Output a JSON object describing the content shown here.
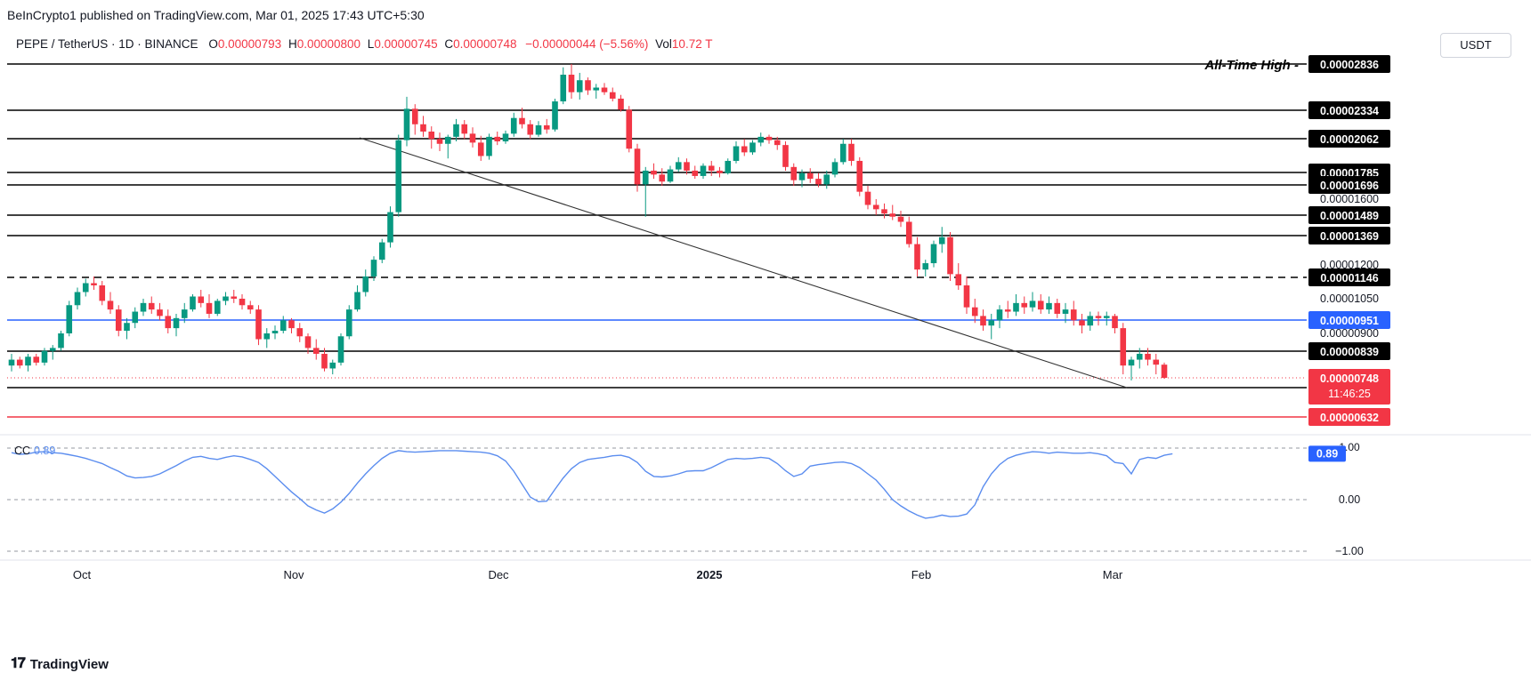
{
  "publisher": "BeInCrypto1 published on TradingView.com, Mar 01, 2025 17:43 UTC+5:30",
  "header": {
    "symbol": "PEPE / TetherUS · 1D · BINANCE",
    "o_label": "O",
    "o_value": "0.00000793",
    "h_label": "H",
    "h_value": "0.00000800",
    "l_label": "L",
    "l_value": "0.00000745",
    "c_label": "C",
    "c_value": "0.00000748",
    "change": "−0.00000044 (−5.56%)",
    "vol_label": "Vol",
    "vol_value": "10.72 T"
  },
  "currency_button": "USDT",
  "footer_brand": "TradingView",
  "ath_label": "All-Time High",
  "colors": {
    "up": "#089981",
    "down": "#f23645",
    "blue": "#2962ff",
    "line": "#000000",
    "cc": "#5b8def"
  },
  "chart_data": {
    "type": "candlestick",
    "interval": "1D",
    "x_labels": [
      "Oct",
      "Nov",
      "Dec",
      "2025",
      "Feb",
      "Mar"
    ],
    "levels": [
      {
        "value": "0.00002836",
        "style": "solid",
        "color": "#000000"
      },
      {
        "value": "0.00002334",
        "style": "solid",
        "color": "#000000"
      },
      {
        "value": "0.00002062",
        "style": "solid",
        "color": "#000000"
      },
      {
        "value": "0.00001785",
        "style": "solid",
        "color": "#000000"
      },
      {
        "value": "0.00001696",
        "style": "solid",
        "color": "#000000"
      },
      {
        "value": "0.00001489",
        "style": "solid",
        "color": "#000000"
      },
      {
        "value": "0.00001369",
        "style": "solid",
        "color": "#000000"
      },
      {
        "value": "0.00001146",
        "style": "dashed",
        "color": "#000000"
      },
      {
        "value": "0.00000951",
        "style": "solid",
        "color": "#2962ff"
      },
      {
        "value": "0.00000839",
        "style": "solid",
        "color": "#000000"
      },
      {
        "value": "0.00000718",
        "style": "solid",
        "color": "#000000"
      },
      {
        "value": "0.00000632",
        "style": "solid",
        "color": "#f23645"
      }
    ],
    "axis_ticks": [
      "0.00001600",
      "0.00001200",
      "0.00001050",
      "0.00000900"
    ],
    "last_price": "0.00000748",
    "countdown": "11:46:25",
    "candles": [
      [
        7.9,
        8.3,
        7.7,
        8.1
      ],
      [
        8.1,
        8.2,
        7.8,
        7.9
      ],
      [
        7.9,
        8.3,
        7.7,
        8.2
      ],
      [
        8.2,
        8.3,
        7.9,
        8.0
      ],
      [
        8.0,
        8.5,
        7.9,
        8.4
      ],
      [
        8.4,
        8.6,
        8.1,
        8.5
      ],
      [
        8.5,
        9.1,
        8.4,
        9.0
      ],
      [
        9.0,
        10.4,
        8.9,
        10.2
      ],
      [
        10.2,
        11.0,
        10.0,
        10.8
      ],
      [
        10.8,
        11.4,
        10.6,
        11.2
      ],
      [
        11.2,
        11.5,
        10.9,
        11.1
      ],
      [
        11.1,
        11.3,
        10.2,
        10.4
      ],
      [
        10.4,
        10.8,
        9.8,
        10.0
      ],
      [
        10.0,
        10.2,
        8.9,
        9.1
      ],
      [
        9.1,
        9.6,
        8.8,
        9.4
      ],
      [
        9.4,
        10.1,
        9.2,
        9.9
      ],
      [
        9.9,
        10.5,
        9.7,
        10.3
      ],
      [
        10.3,
        10.6,
        9.8,
        10.0
      ],
      [
        10.0,
        10.3,
        9.5,
        9.7
      ],
      [
        9.7,
        10.0,
        9.0,
        9.2
      ],
      [
        9.2,
        9.8,
        8.9,
        9.6
      ],
      [
        9.6,
        10.3,
        9.4,
        10.0
      ],
      [
        10.0,
        10.7,
        9.9,
        10.6
      ],
      [
        10.6,
        10.9,
        10.1,
        10.3
      ],
      [
        10.3,
        10.7,
        9.6,
        9.8
      ],
      [
        9.8,
        10.5,
        9.7,
        10.4
      ],
      [
        10.4,
        10.8,
        10.2,
        10.6
      ],
      [
        10.6,
        10.9,
        10.3,
        10.5
      ],
      [
        10.5,
        10.7,
        10.0,
        10.2
      ],
      [
        10.2,
        10.4,
        9.8,
        10.0
      ],
      [
        10.0,
        10.2,
        8.6,
        8.8
      ],
      [
        8.8,
        9.2,
        8.5,
        9.0
      ],
      [
        9.0,
        9.3,
        8.8,
        9.1
      ],
      [
        9.1,
        9.7,
        9.0,
        9.5
      ],
      [
        9.5,
        9.6,
        9.0,
        9.2
      ],
      [
        9.2,
        9.4,
        8.7,
        8.9
      ],
      [
        8.9,
        9.0,
        8.3,
        8.5
      ],
      [
        8.5,
        8.8,
        8.1,
        8.3
      ],
      [
        8.3,
        8.5,
        7.7,
        7.8
      ],
      [
        7.8,
        8.1,
        7.6,
        8.0
      ],
      [
        8.0,
        9.0,
        7.9,
        8.9
      ],
      [
        8.9,
        10.2,
        8.8,
        10.0
      ],
      [
        10.0,
        11.1,
        9.9,
        10.8
      ],
      [
        10.8,
        11.8,
        10.6,
        11.5
      ],
      [
        11.5,
        12.5,
        11.3,
        12.3
      ],
      [
        12.3,
        13.5,
        12.1,
        13.3
      ],
      [
        13.3,
        15.5,
        13.0,
        15.1
      ],
      [
        15.1,
        21.0,
        14.8,
        20.5
      ],
      [
        20.5,
        24.8,
        20.0,
        23.5
      ],
      [
        23.5,
        24.0,
        21.0,
        22.0
      ],
      [
        22.0,
        22.8,
        20.8,
        21.3
      ],
      [
        21.3,
        21.8,
        19.8,
        20.6
      ],
      [
        20.6,
        21.2,
        19.6,
        20.2
      ],
      [
        20.2,
        21.0,
        19.0,
        20.8
      ],
      [
        20.8,
        22.5,
        20.4,
        22.0
      ],
      [
        22.0,
        22.4,
        20.6,
        21.1
      ],
      [
        21.1,
        21.7,
        19.9,
        20.3
      ],
      [
        20.3,
        20.9,
        18.8,
        19.2
      ],
      [
        19.2,
        21.1,
        18.9,
        20.8
      ],
      [
        20.8,
        21.3,
        20.1,
        20.4
      ],
      [
        20.4,
        21.4,
        20.2,
        21.1
      ],
      [
        21.1,
        23.1,
        20.8,
        22.6
      ],
      [
        22.6,
        23.6,
        21.6,
        22.0
      ],
      [
        22.0,
        22.4,
        20.6,
        21.0
      ],
      [
        21.0,
        22.3,
        20.8,
        21.9
      ],
      [
        21.9,
        22.5,
        21.1,
        21.5
      ],
      [
        21.5,
        24.6,
        21.3,
        24.3
      ],
      [
        24.3,
        28.0,
        24.0,
        27.2
      ],
      [
        27.2,
        28.36,
        24.6,
        25.3
      ],
      [
        25.3,
        27.4,
        24.5,
        26.6
      ],
      [
        26.6,
        26.9,
        25.0,
        25.5
      ],
      [
        25.5,
        26.2,
        24.6,
        25.8
      ],
      [
        25.8,
        26.3,
        25.0,
        25.3
      ],
      [
        25.3,
        25.8,
        24.3,
        24.6
      ],
      [
        24.6,
        25.0,
        23.2,
        23.4
      ],
      [
        23.4,
        23.8,
        19.5,
        19.8
      ],
      [
        19.8,
        20.2,
        16.5,
        17.0
      ],
      [
        17.0,
        18.3,
        14.8,
        18.0
      ],
      [
        18.0,
        18.6,
        17.4,
        17.7
      ],
      [
        17.7,
        18.2,
        16.9,
        17.2
      ],
      [
        17.2,
        18.4,
        17.1,
        18.1
      ],
      [
        18.1,
        19.1,
        17.9,
        18.7
      ],
      [
        18.7,
        19.0,
        17.7,
        18.0
      ],
      [
        18.0,
        18.4,
        17.4,
        17.6
      ],
      [
        17.6,
        18.6,
        17.4,
        18.4
      ],
      [
        18.4,
        18.8,
        17.6,
        18.0
      ],
      [
        18.0,
        18.3,
        17.5,
        17.8
      ],
      [
        17.8,
        19.0,
        17.7,
        18.8
      ],
      [
        18.8,
        20.4,
        18.6,
        20.0
      ],
      [
        20.0,
        20.6,
        19.2,
        19.5
      ],
      [
        19.5,
        20.5,
        19.3,
        20.3
      ],
      [
        20.3,
        21.2,
        20.0,
        20.8
      ],
      [
        20.8,
        21.0,
        20.2,
        20.5
      ],
      [
        20.5,
        20.8,
        19.7,
        20.1
      ],
      [
        20.1,
        20.4,
        18.0,
        18.3
      ],
      [
        18.3,
        18.6,
        16.9,
        17.3
      ],
      [
        17.3,
        18.1,
        16.8,
        17.8
      ],
      [
        17.8,
        18.2,
        17.1,
        17.4
      ],
      [
        17.4,
        17.8,
        16.8,
        17.0
      ],
      [
        17.0,
        18.0,
        16.7,
        17.7
      ],
      [
        17.7,
        19.0,
        17.5,
        18.7
      ],
      [
        18.7,
        20.6,
        18.5,
        20.2
      ],
      [
        20.2,
        20.6,
        18.4,
        18.8
      ],
      [
        18.8,
        19.1,
        16.2,
        16.5
      ],
      [
        16.5,
        16.9,
        15.3,
        15.6
      ],
      [
        15.6,
        16.0,
        14.9,
        15.3
      ],
      [
        15.3,
        15.7,
        14.7,
        15.0
      ],
      [
        15.0,
        15.6,
        14.6,
        14.8
      ],
      [
        14.8,
        15.2,
        14.2,
        14.5
      ],
      [
        14.5,
        14.8,
        13.0,
        13.2
      ],
      [
        13.2,
        13.6,
        11.5,
        11.8
      ],
      [
        11.8,
        12.3,
        11.5,
        12.1
      ],
      [
        12.1,
        13.4,
        11.9,
        13.2
      ],
      [
        13.2,
        14.2,
        12.7,
        13.6
      ],
      [
        13.6,
        13.9,
        11.3,
        11.6
      ],
      [
        11.6,
        12.1,
        10.9,
        11.1
      ],
      [
        11.1,
        11.5,
        9.8,
        10.1
      ],
      [
        10.1,
        10.5,
        9.4,
        9.7
      ],
      [
        9.7,
        10.0,
        9.1,
        9.3
      ],
      [
        9.3,
        9.8,
        8.8,
        9.5
      ],
      [
        9.5,
        10.2,
        9.2,
        10.0
      ],
      [
        10.0,
        10.4,
        9.6,
        9.9
      ],
      [
        9.9,
        10.7,
        9.7,
        10.3
      ],
      [
        10.3,
        10.6,
        9.8,
        10.1
      ],
      [
        10.1,
        10.8,
        9.9,
        10.4
      ],
      [
        10.4,
        10.7,
        9.8,
        10.0
      ],
      [
        10.0,
        10.6,
        9.8,
        10.3
      ],
      [
        10.3,
        10.5,
        9.6,
        9.8
      ],
      [
        9.8,
        10.3,
        9.4,
        10.0
      ],
      [
        10.0,
        10.4,
        9.3,
        9.5
      ],
      [
        9.5,
        9.8,
        9.0,
        9.3
      ],
      [
        9.3,
        9.9,
        9.1,
        9.7
      ],
      [
        9.7,
        9.9,
        9.3,
        9.6
      ],
      [
        9.6,
        9.9,
        9.3,
        9.7
      ],
      [
        9.7,
        9.8,
        9.0,
        9.2
      ],
      [
        9.2,
        9.4,
        7.6,
        7.9
      ],
      [
        7.9,
        8.2,
        7.4,
        8.1
      ],
      [
        8.1,
        8.5,
        7.8,
        8.3
      ],
      [
        8.3,
        8.5,
        7.9,
        8.1
      ],
      [
        8.1,
        8.3,
        7.6,
        7.93
      ],
      [
        7.93,
        8.0,
        7.45,
        7.48
      ]
    ],
    "indicator": {
      "name": "CC",
      "value": "0.89",
      "axis_ticks": [
        "0.00",
        "−1.00"
      ],
      "upper_tick": "1.00",
      "values": [
        0.91,
        0.88,
        0.89,
        0.92,
        0.93,
        0.91,
        0.9,
        0.87,
        0.84,
        0.8,
        0.75,
        0.7,
        0.62,
        0.55,
        0.46,
        0.42,
        0.43,
        0.45,
        0.5,
        0.58,
        0.66,
        0.75,
        0.82,
        0.84,
        0.8,
        0.78,
        0.82,
        0.85,
        0.83,
        0.78,
        0.72,
        0.6,
        0.45,
        0.3,
        0.15,
        0.02,
        -0.12,
        -0.2,
        -0.26,
        -0.18,
        -0.05,
        0.12,
        0.32,
        0.5,
        0.66,
        0.8,
        0.9,
        0.95,
        0.93,
        0.92,
        0.93,
        0.94,
        0.95,
        0.95,
        0.95,
        0.94,
        0.93,
        0.92,
        0.9,
        0.85,
        0.75,
        0.55,
        0.3,
        0.05,
        -0.04,
        -0.03,
        0.2,
        0.42,
        0.6,
        0.72,
        0.78,
        0.8,
        0.82,
        0.85,
        0.86,
        0.82,
        0.72,
        0.55,
        0.45,
        0.44,
        0.46,
        0.5,
        0.55,
        0.56,
        0.56,
        0.62,
        0.7,
        0.78,
        0.8,
        0.79,
        0.8,
        0.82,
        0.8,
        0.7,
        0.56,
        0.45,
        0.5,
        0.65,
        0.68,
        0.7,
        0.72,
        0.73,
        0.7,
        0.62,
        0.5,
        0.38,
        0.2,
        0.0,
        -0.12,
        -0.22,
        -0.3,
        -0.36,
        -0.34,
        -0.3,
        -0.33,
        -0.32,
        -0.28,
        -0.1,
        0.25,
        0.5,
        0.68,
        0.8,
        0.86,
        0.9,
        0.93,
        0.92,
        0.9,
        0.92,
        0.91,
        0.9,
        0.9,
        0.91,
        0.89,
        0.85,
        0.72,
        0.7,
        0.5,
        0.78,
        0.82,
        0.8,
        0.86,
        0.89
      ]
    }
  }
}
